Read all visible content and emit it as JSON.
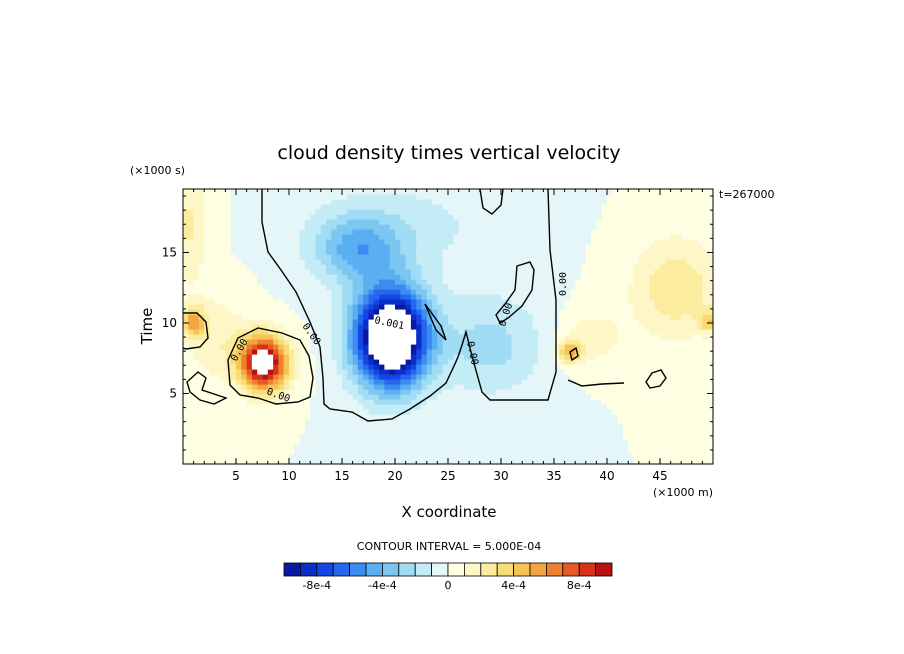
{
  "chart_data": {
    "type": "heatmap",
    "title": "cloud density times vertical velocity",
    "xlabel": "X coordinate",
    "ylabel": "Time",
    "x_units": "(×1000 m)",
    "y_units": "(×1000 s)",
    "time_stamp": "t=267000",
    "xlim": [
      0,
      50
    ],
    "ylim": [
      0,
      19.5
    ],
    "x_ticks": [
      5,
      10,
      15,
      20,
      25,
      30,
      35,
      40,
      45
    ],
    "y_ticks": [
      5,
      10,
      15
    ],
    "contour_interval_text": "CONTOUR INTERVAL = 5.000E-04",
    "contour_labels": [
      "0.00",
      "0.001",
      "0.00",
      "0.00",
      "0.00",
      "0.00",
      "0.00"
    ],
    "colorbar": {
      "levels": [
        -0.001,
        -0.0009,
        -0.0008,
        -0.0007,
        -0.0006,
        -0.0005,
        -0.0004,
        -0.0003,
        -0.0002,
        -0.0001,
        0,
        0.0001,
        0.0002,
        0.0003,
        0.0004,
        0.0005,
        0.0006,
        0.0007,
        0.0008,
        0.0009,
        0.001
      ],
      "tick_labels": [
        "-8e-4",
        "-4e-4",
        "0",
        "4e-4",
        "8e-4"
      ],
      "tick_values": [
        -0.0008,
        -0.0004,
        0,
        0.0004,
        0.0008
      ],
      "colors": [
        "#0a1aa0",
        "#0c2ec8",
        "#1446e6",
        "#2466ee",
        "#3c8cf0",
        "#5aaef2",
        "#7cc6f2",
        "#a0dcf4",
        "#c4ecf6",
        "#e4f6f8",
        "#fefee2",
        "#fdf6c6",
        "#fbec9e",
        "#f8dc78",
        "#f6c454",
        "#f3a640",
        "#ef8030",
        "#e85a24",
        "#d83218",
        "#b81212"
      ]
    },
    "features": [
      {
        "x": 0.5,
        "y": 17.0,
        "sx": 1.9,
        "sy": 4.2,
        "value": 0.00022
      },
      {
        "x": 1.0,
        "y": 10.1,
        "sx": 1.0,
        "sy": 1.0,
        "value": 0.0005
      },
      {
        "x": 3.0,
        "y": 9.0,
        "sx": 3.0,
        "sy": 3.0,
        "value": 0.00018
      },
      {
        "x": 7.6,
        "y": 7.2,
        "sx": 2.2,
        "sy": 1.9,
        "value": 0.0012
      },
      {
        "x": 16.5,
        "y": 15.3,
        "sx": 4.2,
        "sy": 2.4,
        "value": -0.0004
      },
      {
        "x": 19.6,
        "y": 9.0,
        "sx": 3.4,
        "sy": 3.4,
        "value": -0.0015
      },
      {
        "x": 29.0,
        "y": 8.5,
        "sx": 5.0,
        "sy": 3.6,
        "value": -0.00024
      },
      {
        "x": 21.0,
        "y": 17.0,
        "sx": 9.0,
        "sy": 3.5,
        "value": -0.00013
      },
      {
        "x": 36.5,
        "y": 8.0,
        "sx": 1.1,
        "sy": 0.8,
        "value": 0.00046
      },
      {
        "x": 38.5,
        "y": 9.0,
        "sx": 3.0,
        "sy": 2.0,
        "value": 0.00016
      },
      {
        "x": 46.5,
        "y": 12.5,
        "sx": 4.2,
        "sy": 3.6,
        "value": 0.00028
      },
      {
        "x": 49.6,
        "y": 10.2,
        "sx": 0.9,
        "sy": 0.8,
        "value": 0.00032
      }
    ],
    "grid": false,
    "legend": "colorbar-bottom"
  }
}
